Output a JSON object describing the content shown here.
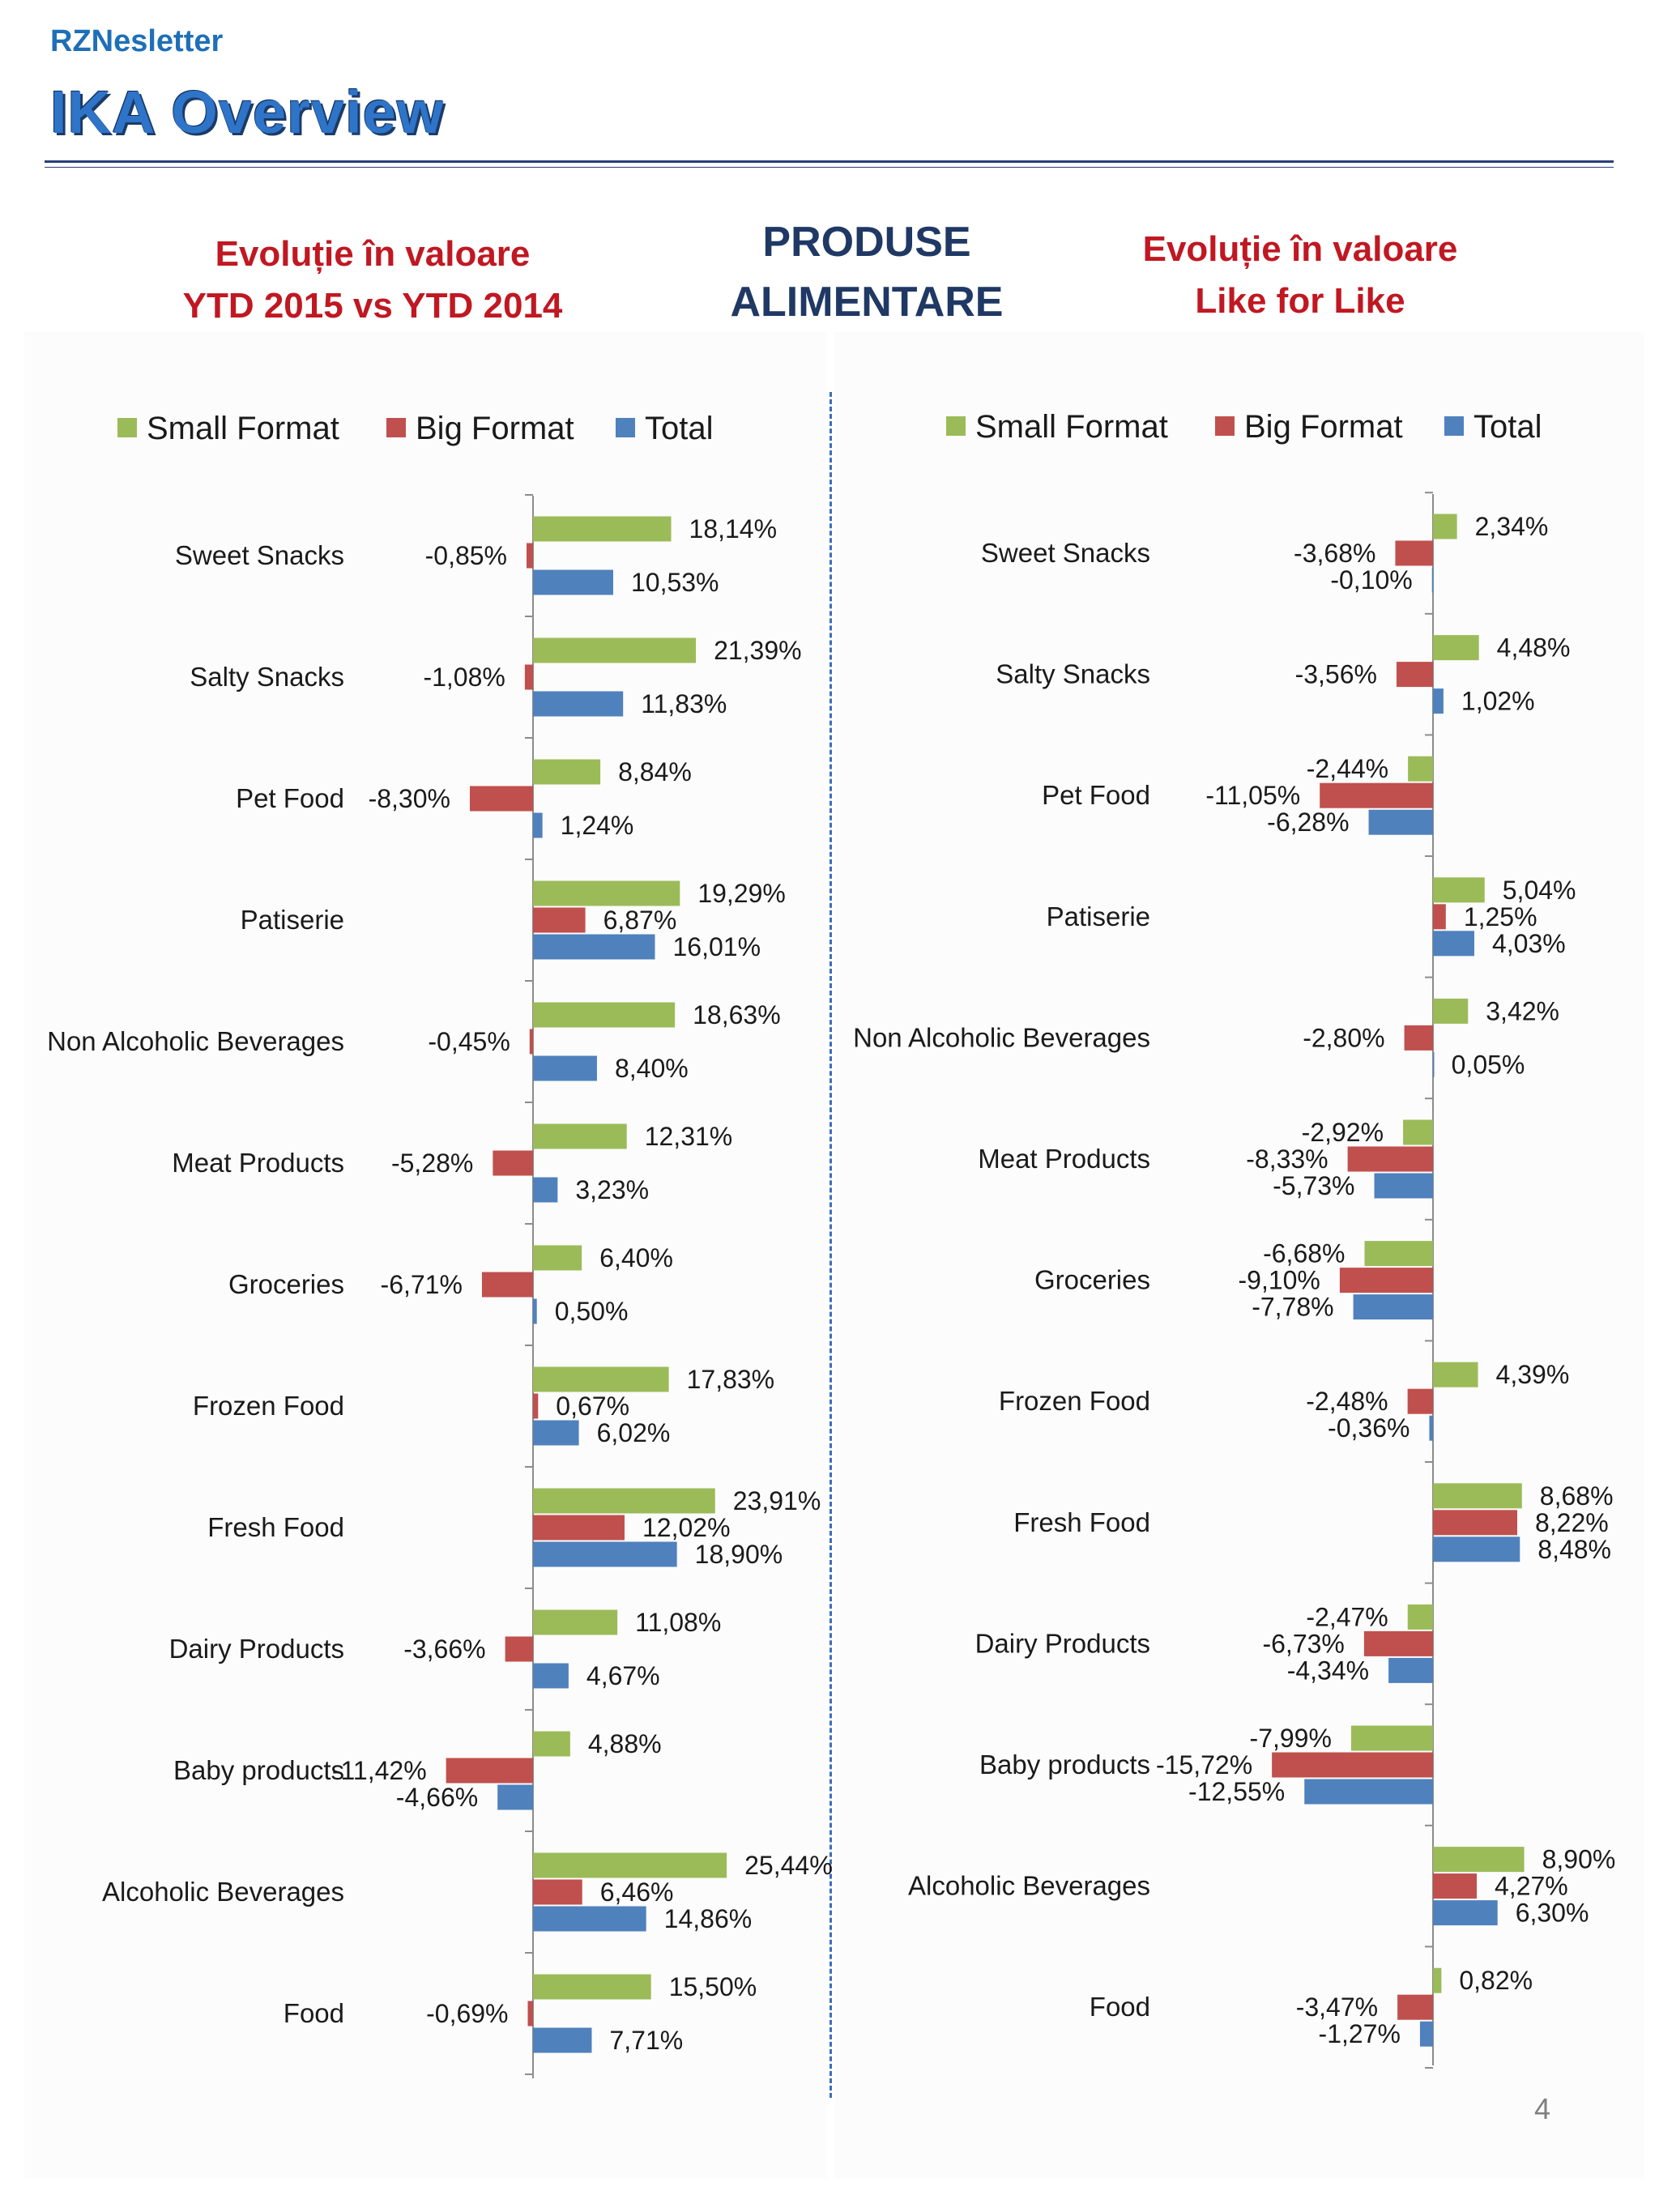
{
  "header": {
    "brand": "RZNesletter",
    "title": "IKA Overview",
    "left_line1": "Evoluție în valoare",
    "left_line2": "YTD 2015 vs YTD 2014",
    "mid_line1": "PRODUSE",
    "mid_line2": "ALIMENTARE",
    "right_line1": "Evoluție în valoare",
    "right_line2": "Like for Like"
  },
  "page_number": "4",
  "colors": {
    "small": "#9bbb59",
    "big": "#c0504d",
    "total": "#4f81bd"
  },
  "chart_data": [
    {
      "type": "bar",
      "orientation": "horizontal",
      "title": "Evoluție în valoare YTD 2015 vs YTD 2014",
      "legend": [
        "Small Format",
        "Big Format",
        "Total"
      ],
      "categories": [
        "Sweet Snacks",
        "Salty Snacks",
        "Pet Food",
        "Patiserie",
        "Non Alcoholic Beverages",
        "Meat Products",
        "Groceries",
        "Frozen Food",
        "Fresh Food",
        "Dairy Products",
        "Baby products",
        "Alcoholic Beverages",
        "Food"
      ],
      "series": [
        {
          "name": "Small Format",
          "values": [
            18.14,
            21.39,
            8.84,
            19.29,
            18.63,
            12.31,
            6.4,
            17.83,
            23.91,
            11.08,
            4.88,
            25.44,
            15.5
          ],
          "labels": [
            "18,14%",
            "21,39%",
            "8,84%",
            "19,29%",
            "18,63%",
            "12,31%",
            "6,40%",
            "17,83%",
            "23,91%",
            "11,08%",
            "4,88%",
            "25,44%",
            "15,50%"
          ]
        },
        {
          "name": "Big Format",
          "values": [
            -0.85,
            -1.08,
            -8.3,
            6.87,
            -0.45,
            -5.28,
            -6.71,
            0.67,
            12.02,
            -3.66,
            -11.42,
            6.46,
            -0.69
          ],
          "labels": [
            "-0,85%",
            "-1,08%",
            "-8,30%",
            "6,87%",
            "-0,45%",
            "-5,28%",
            "-6,71%",
            "0,67%",
            "12,02%",
            "-3,66%",
            "-11,42%",
            "6,46%",
            "-0,69%"
          ]
        },
        {
          "name": "Total",
          "values": [
            10.53,
            11.83,
            1.24,
            16.01,
            8.4,
            3.23,
            0.5,
            6.02,
            18.9,
            4.67,
            -4.66,
            14.86,
            7.71
          ],
          "labels": [
            "10,53%",
            "11,83%",
            "1,24%",
            "16,01%",
            "8,40%",
            "3,23%",
            "0,50%",
            "6,02%",
            "18,90%",
            "4,67%",
            "-4,66%",
            "14,86%",
            "7,71%"
          ]
        }
      ]
    },
    {
      "type": "bar",
      "orientation": "horizontal",
      "title": "Evoluție în valoare Like for Like",
      "legend": [
        "Small Format",
        "Big Format",
        "Total"
      ],
      "categories": [
        "Sweet Snacks",
        "Salty Snacks",
        "Pet Food",
        "Patiserie",
        "Non Alcoholic Beverages",
        "Meat Products",
        "Groceries",
        "Frozen Food",
        "Fresh Food",
        "Dairy Products",
        "Baby products",
        "Alcoholic Beverages",
        "Food"
      ],
      "series": [
        {
          "name": "Small Format",
          "values": [
            2.34,
            4.48,
            -2.44,
            5.04,
            3.42,
            -2.92,
            -6.68,
            4.39,
            8.68,
            -2.47,
            -7.99,
            8.9,
            0.82
          ],
          "labels": [
            "2,34%",
            "4,48%",
            "-2,44%",
            "5,04%",
            "3,42%",
            "-2,92%",
            "-6,68%",
            "4,39%",
            "8,68%",
            "-2,47%",
            "-7,99%",
            "8,90%",
            "0,82%"
          ]
        },
        {
          "name": "Big Format",
          "values": [
            -3.68,
            -3.56,
            -11.05,
            1.25,
            -2.8,
            -8.33,
            -9.1,
            -2.48,
            8.22,
            -6.73,
            -15.72,
            4.27,
            -3.47
          ],
          "labels": [
            "-3,68%",
            "-3,56%",
            "-11,05%",
            "1,25%",
            "-2,80%",
            "-8,33%",
            "-9,10%",
            "-2,48%",
            "8,22%",
            "-6,73%",
            "-15,72%",
            "4,27%",
            "-3,47%"
          ]
        },
        {
          "name": "Total",
          "values": [
            -0.1,
            1.02,
            -6.28,
            4.03,
            0.05,
            -5.73,
            -7.78,
            -0.36,
            8.48,
            -4.34,
            -12.55,
            6.3,
            -1.27
          ],
          "labels": [
            "-0,10%",
            "1,02%",
            "-6,28%",
            "4,03%",
            "0,05%",
            "-5,73%",
            "-7,78%",
            "-0,36%",
            "8,48%",
            "-4,34%",
            "-12,55%",
            "6,30%",
            "-1,27%"
          ]
        }
      ]
    }
  ]
}
